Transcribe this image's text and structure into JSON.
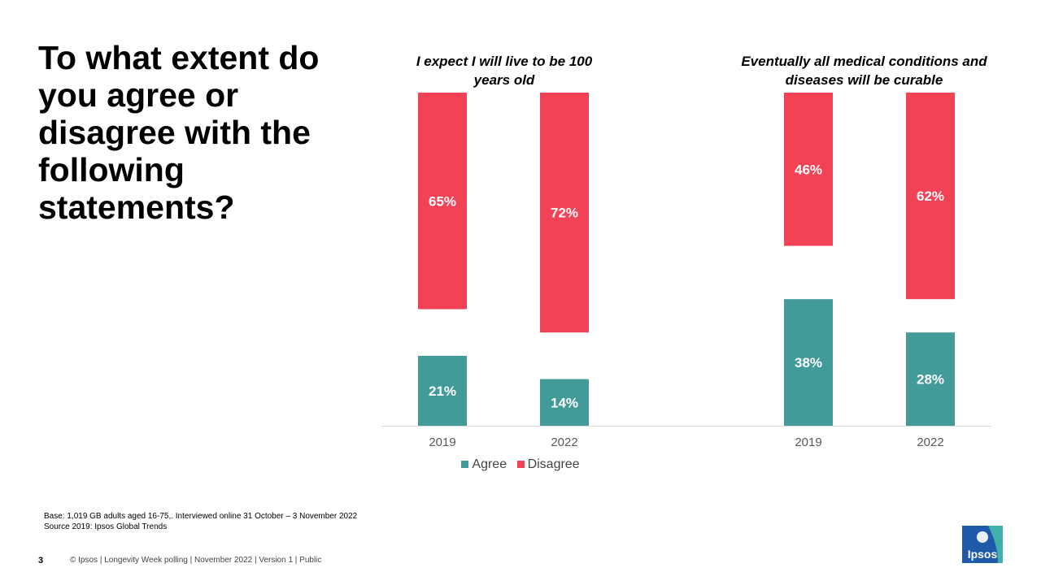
{
  "title": "To what extent do you agree or disagree with the following statements?",
  "chart_data": {
    "type": "bar",
    "stacked": true,
    "layout": "split-stack",
    "groups": [
      {
        "title": "I expect I will live to be 100 years old",
        "categories": [
          "2019",
          "2022"
        ],
        "series": [
          {
            "name": "Agree",
            "values": [
              21,
              14
            ]
          },
          {
            "name": "Disagree",
            "values": [
              65,
              72
            ]
          }
        ]
      },
      {
        "title": "Eventually all medical conditions and diseases will be curable",
        "categories": [
          "2019",
          "2022"
        ],
        "series": [
          {
            "name": "Agree",
            "values": [
              38,
              28
            ]
          },
          {
            "name": "Disagree",
            "values": [
              46,
              62
            ]
          }
        ]
      }
    ],
    "legend": [
      "Agree",
      "Disagree"
    ],
    "legend_position": "bottom",
    "value_format": "{v}%",
    "colors": {
      "Agree": "#429a99",
      "Disagree": "#f24255"
    },
    "grid": false
  },
  "footnotes": {
    "base": "Base: 1,019 GB adults aged 16-75,. Interviewed online 31 October – 3 November 2022",
    "source": "Source 2019: Ipsos Global Trends"
  },
  "footer": {
    "page_number": "3",
    "text": "© Ipsos | Longevity Week polling | November 2022 | Version 1 | Public"
  },
  "logo": {
    "text": "Ipsos",
    "color": "#1e5aa8",
    "accent": "#3fb0ac"
  }
}
